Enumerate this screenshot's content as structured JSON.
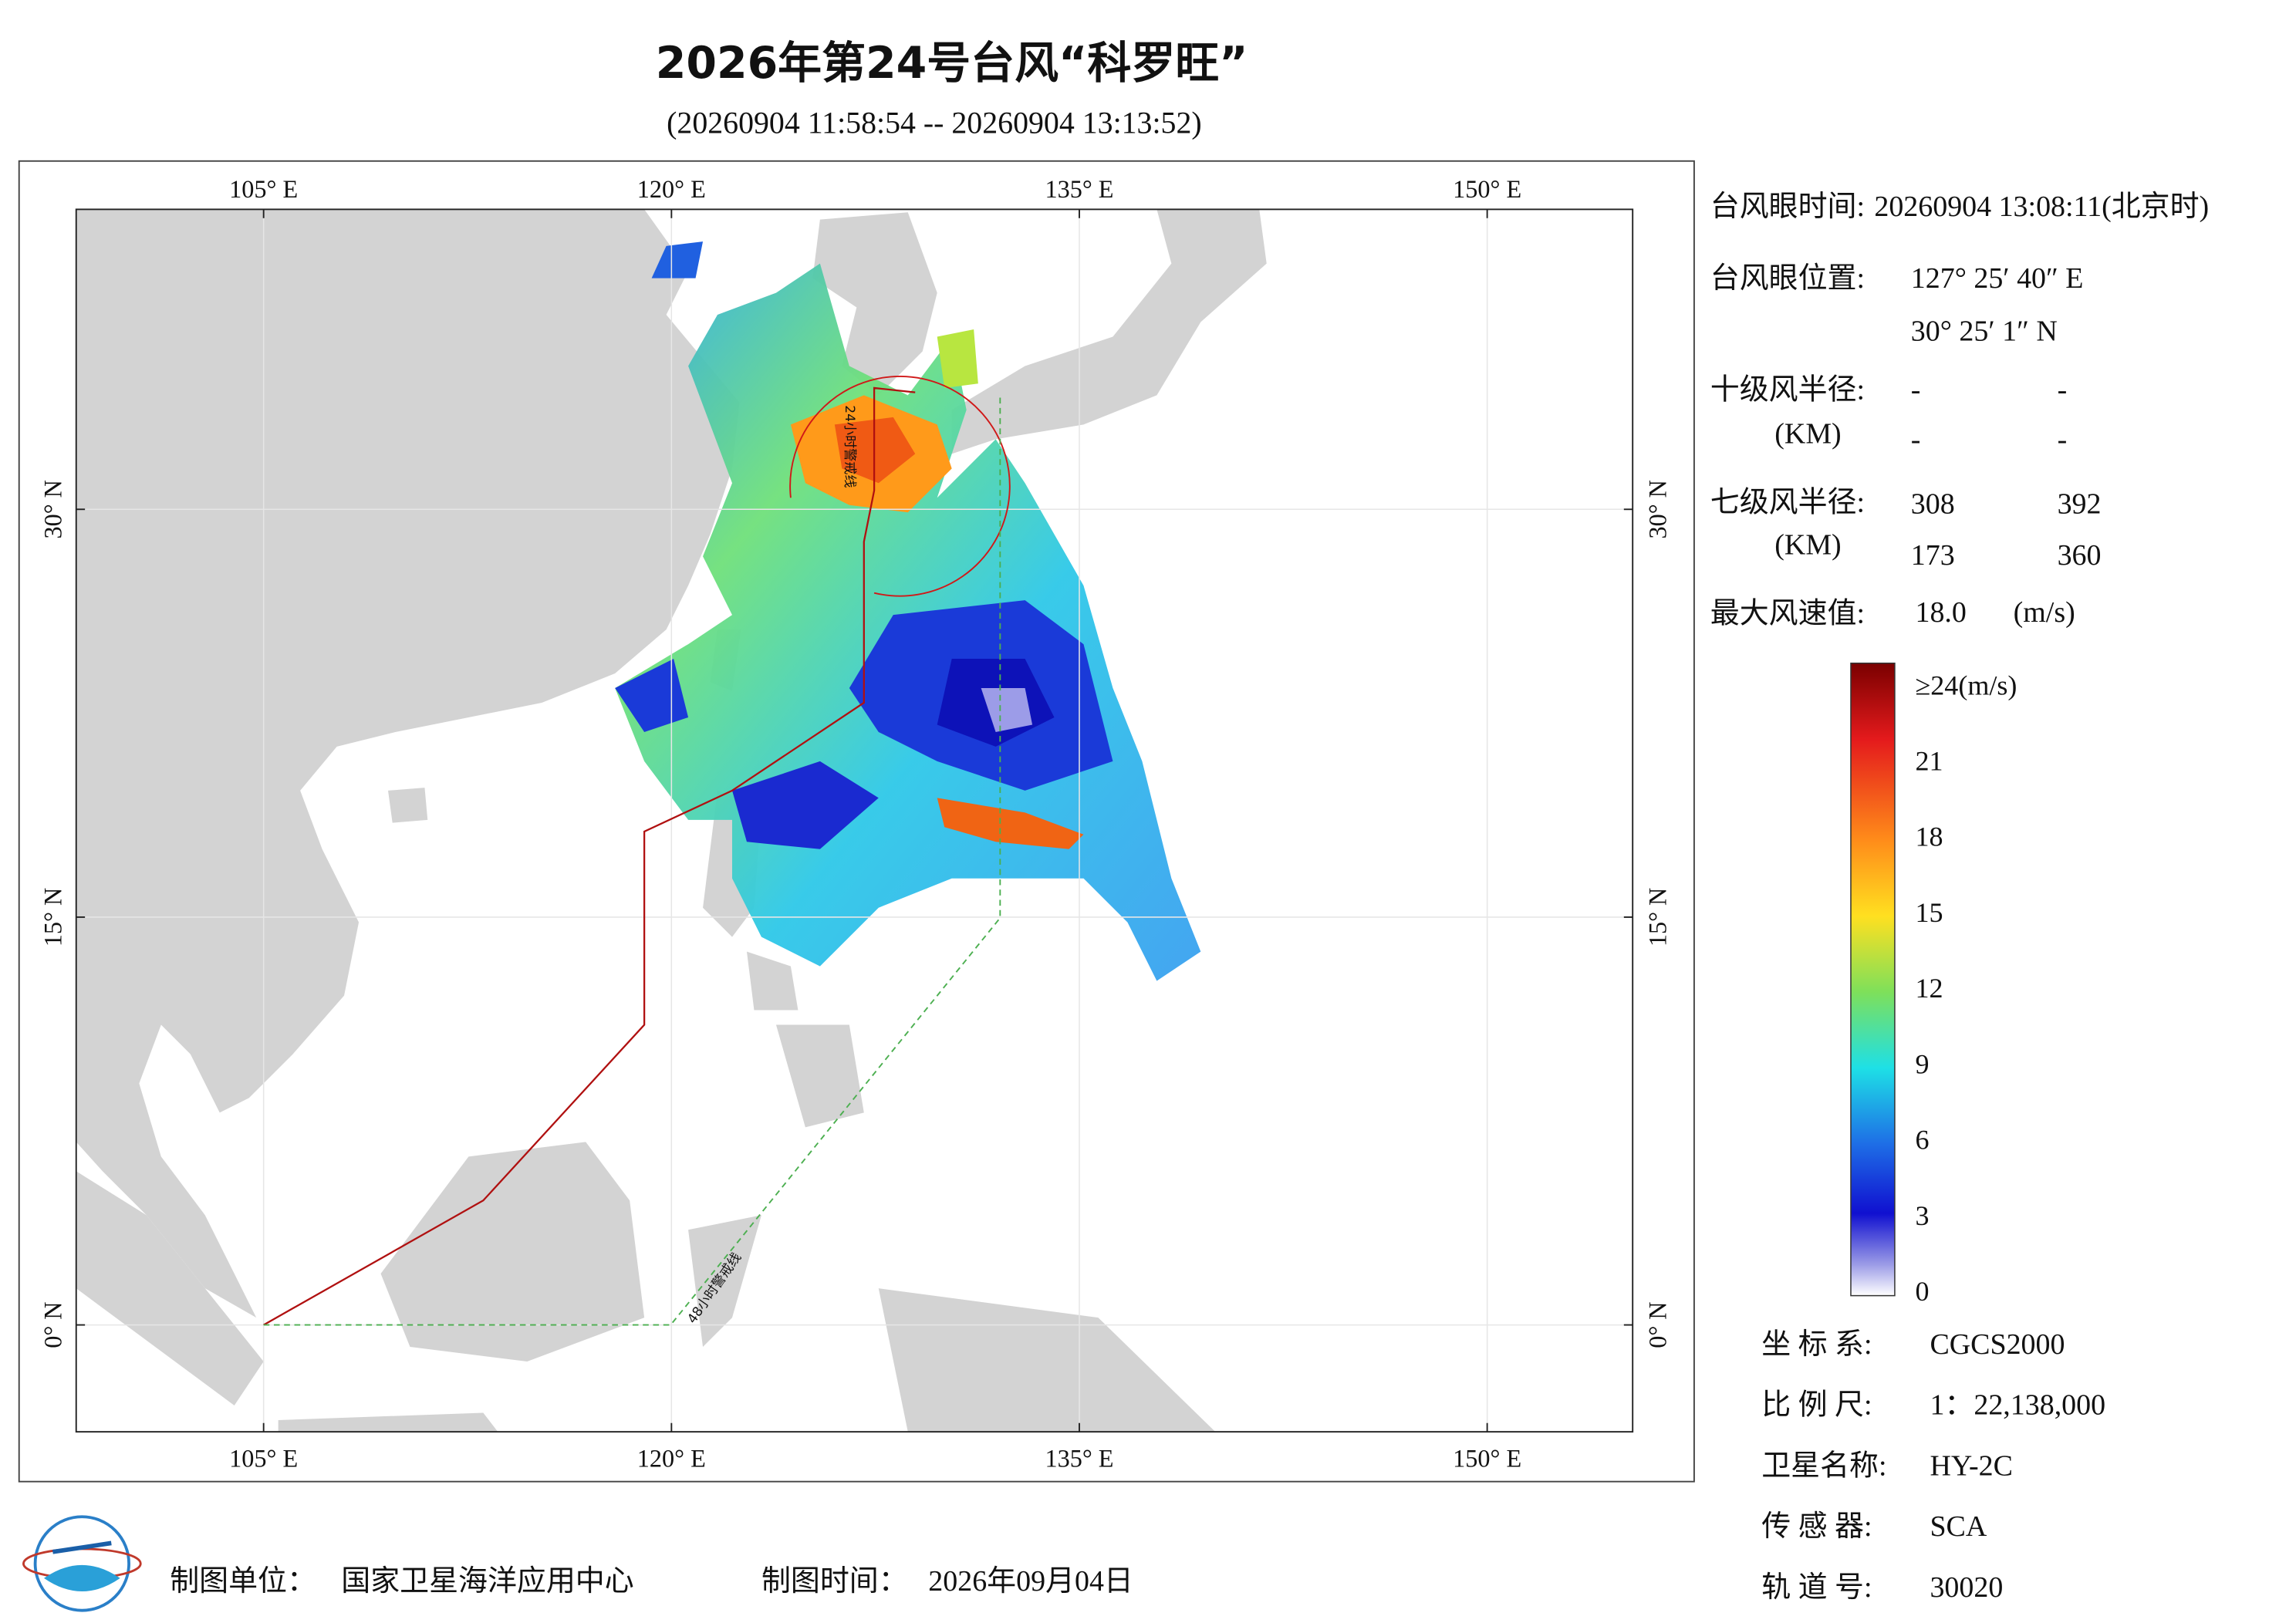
{
  "header": {
    "title": "2026年第24号台风“科罗旺”",
    "subtitle": "(20260904 11:58:54 -- 20260904 13:13:52)"
  },
  "map": {
    "lon_labels": [
      {
        "value": 105,
        "label": "105° E"
      },
      {
        "value": 120,
        "label": "120° E"
      },
      {
        "value": 135,
        "label": "135° E"
      },
      {
        "value": 150,
        "label": "150° E"
      }
    ],
    "lat_labels": [
      {
        "value": 0,
        "label": "0° N"
      },
      {
        "value": 15,
        "label": "15° N"
      },
      {
        "value": 30,
        "label": "30° N"
      }
    ],
    "warning_24h": "24小时警戒线",
    "warning_48h": "48小时警戒线"
  },
  "info": {
    "eye_time_label": "台风眼时间:",
    "eye_time": "20260904 13:08:11(北京时)",
    "eye_position_label": "台风眼位置:",
    "eye_lon": "127° 25′ 40″ E",
    "eye_lat": "30° 25′ 1″ N",
    "r10_label": "十级风半径:",
    "r10_unit": "(KM)",
    "r10": [
      "-",
      "-",
      "-",
      "-"
    ],
    "r7_label": "七级风半径:",
    "r7_unit": "(KM)",
    "r7": [
      "308",
      "392",
      "173",
      "360"
    ],
    "max_wind_label": "最大风速值:",
    "max_wind": "18.0",
    "max_wind_unit": "(m/s)"
  },
  "colorbar": {
    "labels": [
      "≥24(m/s)",
      "21",
      "18",
      "15",
      "12",
      "9",
      "6",
      "3",
      "0"
    ]
  },
  "meta": [
    {
      "label": "坐 标 系:",
      "value": "CGCS2000"
    },
    {
      "label": "比 例 尺:",
      "value": "1：22,138,000"
    },
    {
      "label": "卫星名称:",
      "value": "HY-2C"
    },
    {
      "label": "传 感 器:",
      "value": "SCA"
    },
    {
      "label": "轨 道 号:",
      "value": "30020"
    }
  ],
  "footer": {
    "org_label": "制图单位：",
    "org": "国家卫星海洋应用中心",
    "date_label": "制图时间：",
    "date": "2026年09月04日"
  }
}
